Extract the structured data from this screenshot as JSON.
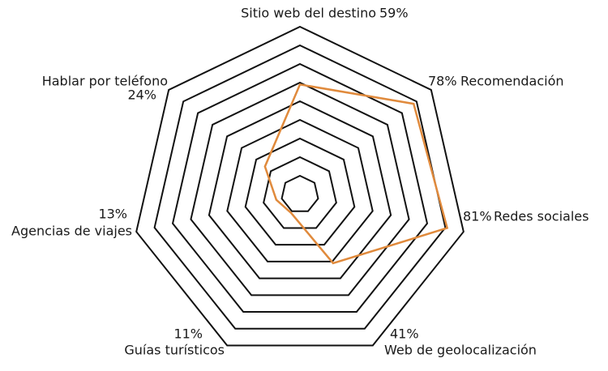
{
  "chart_data": {
    "type": "radar",
    "categories": [
      "Sitio web del destino",
      "Recomendación",
      "Redes sociales",
      "Web de geolocalización",
      "Guías turísticos",
      "Agencias de viajes",
      "Hablar por teléfono"
    ],
    "values": [
      59,
      78,
      81,
      41,
      11,
      13,
      24
    ],
    "value_labels": [
      "59%",
      "78%",
      "81%",
      "41%",
      "11%",
      "13%",
      "24%"
    ],
    "color": "#e08a3c",
    "rlim": [
      0,
      90
    ],
    "rticks": [
      10,
      20,
      30,
      40,
      50,
      60,
      70,
      80,
      90
    ]
  }
}
